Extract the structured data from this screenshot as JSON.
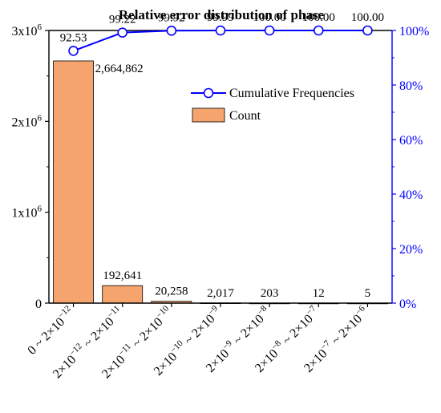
{
  "chart_data": {
    "type": "bar",
    "title": "Relative error distribution of phase",
    "categories": [
      [
        "0 ~ 2×10",
        "−12"
      ],
      [
        "2×10",
        "−12",
        " ~ 2×10",
        "−11"
      ],
      [
        "2×10",
        "−11",
        " ~ 2×10",
        "−10"
      ],
      [
        "2×10",
        "−10",
        " ~ 2×10",
        "−9"
      ],
      [
        "2×10",
        "−9",
        " ~ 2×10",
        "−8"
      ],
      [
        "2×10",
        "−8",
        " ~ 2×10",
        "−7"
      ],
      [
        "2×10",
        "−7",
        " ~ 2×10",
        "−6"
      ]
    ],
    "series": [
      {
        "name": "Count",
        "type": "bar",
        "axis": "left",
        "values": [
          2664862,
          192641,
          20258,
          2017,
          203,
          12,
          5
        ],
        "value_labels": [
          "2,664,862",
          "192,641",
          "20,258",
          "2,017",
          "203",
          "12",
          "5"
        ],
        "color": "#f4a46c"
      },
      {
        "name": "Cumulative Frequencies",
        "type": "line",
        "axis": "right",
        "values": [
          92.53,
          99.22,
          99.92,
          99.99,
          100.0,
          100.0,
          100.0
        ],
        "value_labels": [
          "92.53",
          "99.22",
          "99.92",
          "99.99",
          "100.00",
          "100.00",
          "100.00"
        ],
        "color": "#0000ff"
      }
    ],
    "y_left": {
      "ylim": [
        0,
        3000000
      ],
      "ticks": [
        {
          "value": 0,
          "base": "0",
          "exp": ""
        },
        {
          "value": 1000000,
          "base": "1x10",
          "exp": "6"
        },
        {
          "value": 2000000,
          "base": "2x10",
          "exp": "6"
        },
        {
          "value": 3000000,
          "base": "3x10",
          "exp": "6"
        }
      ]
    },
    "y_right": {
      "ylim": [
        0,
        100
      ],
      "ticks": [
        {
          "value": 0,
          "label": "0%"
        },
        {
          "value": 20,
          "label": "20%"
        },
        {
          "value": 40,
          "label": "40%"
        },
        {
          "value": 60,
          "label": "60%"
        },
        {
          "value": 80,
          "label": "80%"
        },
        {
          "value": 100,
          "label": "100%"
        }
      ],
      "color": "#0000ff"
    },
    "grid": false,
    "legend": {
      "placement": "top-right",
      "entries": [
        {
          "label": "Cumulative Frequencies",
          "kind": "line-marker"
        },
        {
          "label": "Count",
          "kind": "bar"
        }
      ]
    }
  }
}
